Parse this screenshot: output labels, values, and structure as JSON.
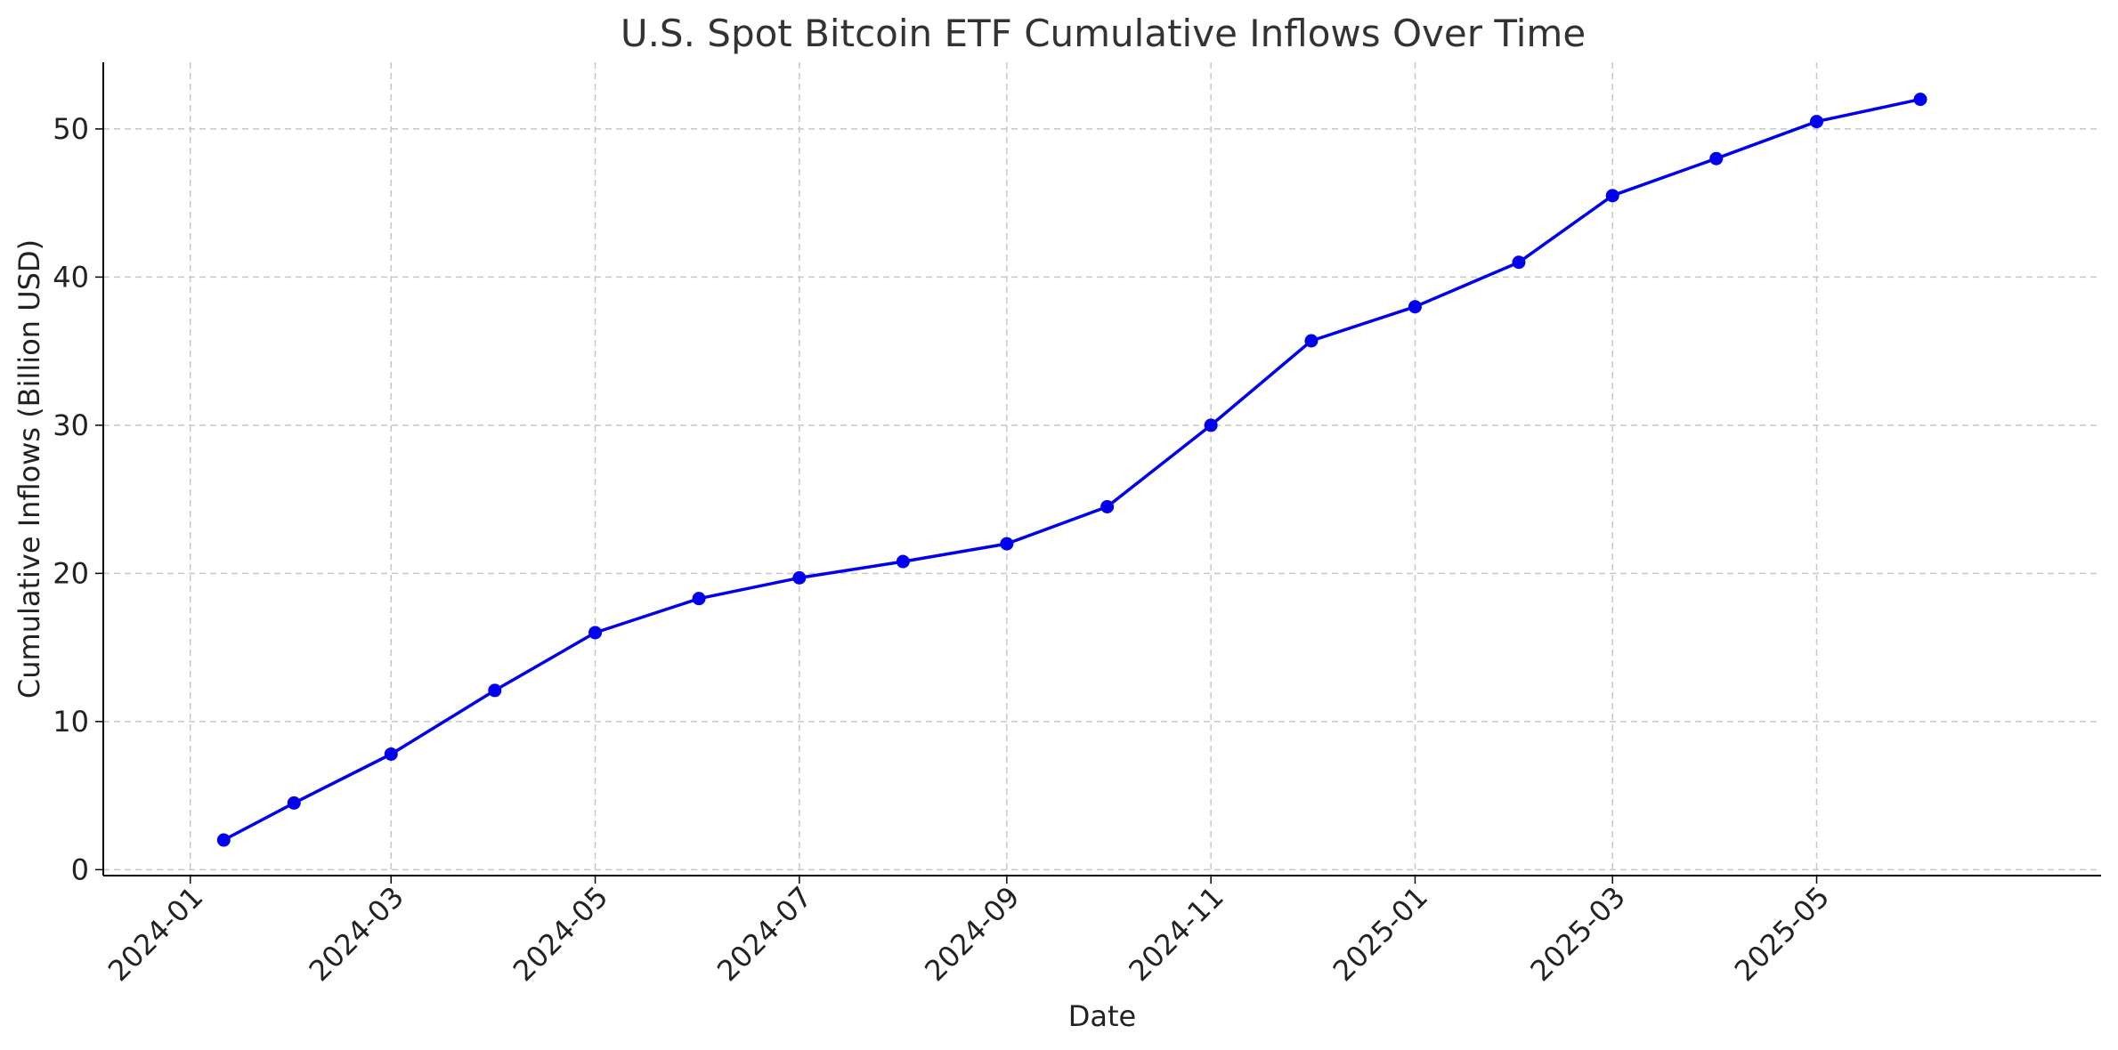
{
  "chart_data": {
    "type": "line",
    "title": "U.S. Spot Bitcoin ETF Cumulative Inflows Over Time",
    "xlabel": "Date",
    "ylabel": "Cumulative Inflows (Billion USD)",
    "xlim": [
      "2023-12-06",
      "2025-07-25"
    ],
    "ylim": [
      -0.4,
      54.5
    ],
    "x_ticks": [
      "2024-01",
      "2024-03",
      "2024-05",
      "2024-07",
      "2024-09",
      "2024-11",
      "2025-01",
      "2025-03",
      "2025-05"
    ],
    "y_ticks": [
      0,
      10,
      20,
      30,
      40,
      50
    ],
    "grid": true,
    "x": [
      "2024-01-11",
      "2024-02-01",
      "2024-03-01",
      "2024-04-01",
      "2024-05-01",
      "2024-06-01",
      "2024-07-01",
      "2024-08-01",
      "2024-09-01",
      "2024-10-01",
      "2024-11-01",
      "2024-12-01",
      "2025-01-01",
      "2025-02-01",
      "2025-03-01",
      "2025-04-01",
      "2025-05-01",
      "2025-06-01"
    ],
    "series": [
      {
        "values": [
          2.0,
          4.5,
          7.8,
          12.1,
          16.0,
          18.3,
          19.7,
          20.8,
          22.0,
          24.5,
          30.0,
          35.7,
          38.0,
          41.0,
          45.5,
          48.0,
          50.5,
          52.0
        ],
        "color": "#0000ee",
        "marker": "circle"
      }
    ]
  }
}
